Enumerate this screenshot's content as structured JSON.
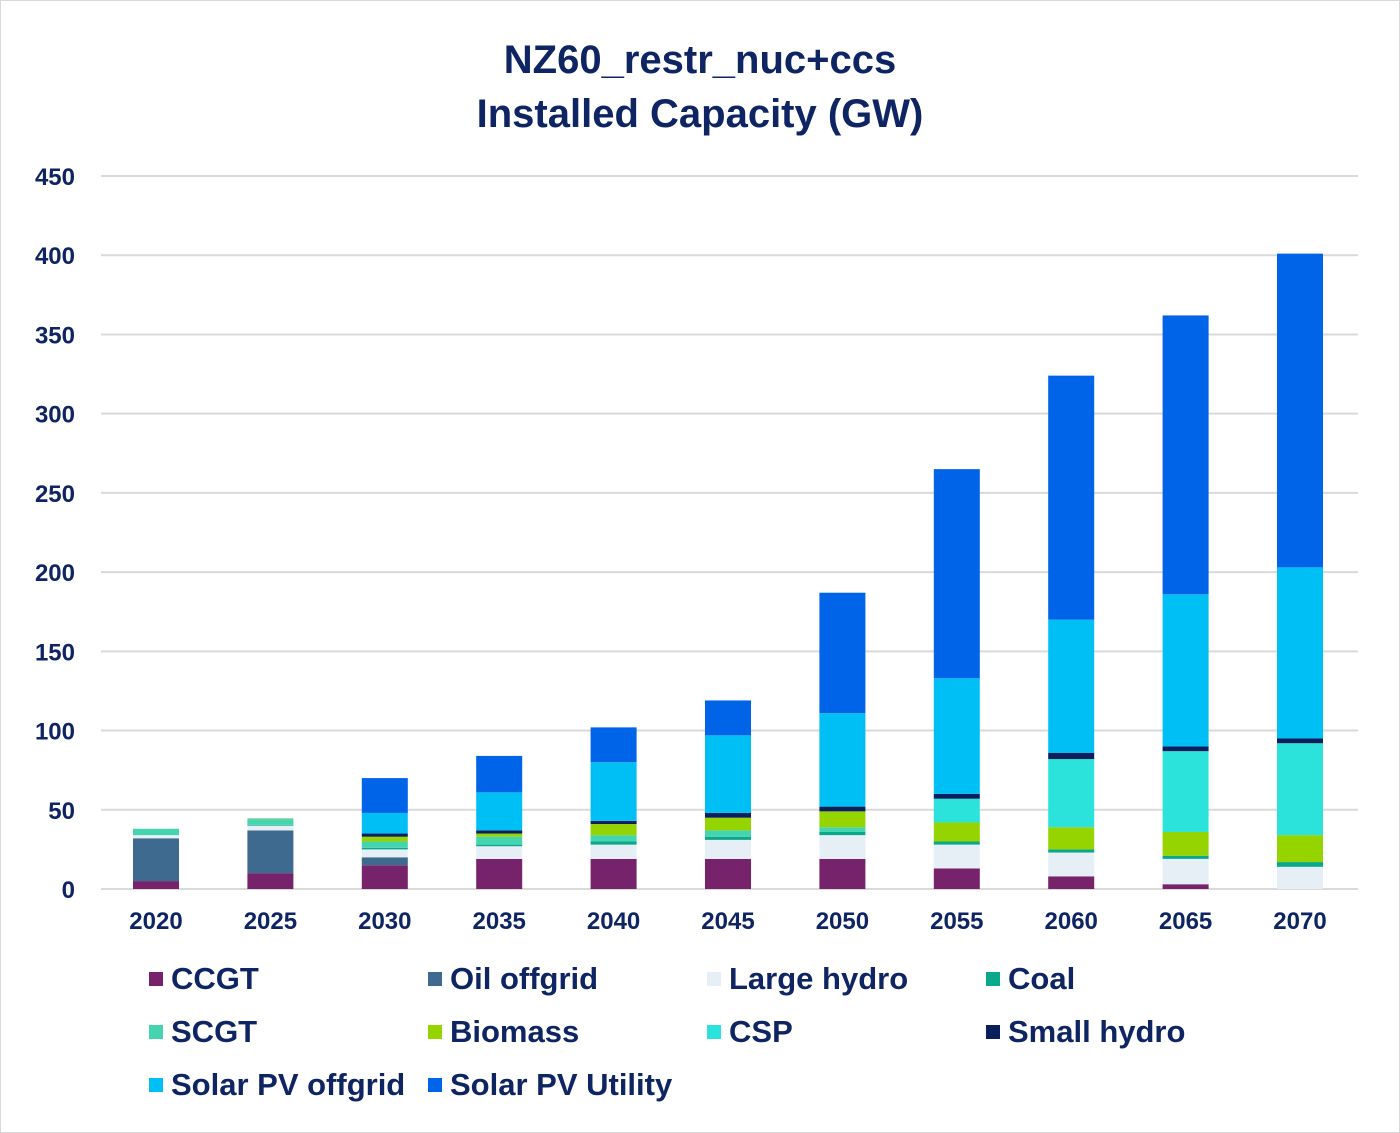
{
  "chart_data": {
    "type": "bar",
    "stacked": true,
    "title": "NZ60_restr_nuc+ccs",
    "subtitle": "Installed Capacity (GW)",
    "xlabel": "",
    "ylabel": "",
    "ylim": [
      0,
      450
    ],
    "yticks": [
      0,
      50,
      100,
      150,
      200,
      250,
      300,
      350,
      400,
      450
    ],
    "grid": true,
    "legend_position": "bottom",
    "categories": [
      "2020",
      "2025",
      "2030",
      "2035",
      "2040",
      "2045",
      "2050",
      "2055",
      "2060",
      "2065",
      "2070"
    ],
    "series": [
      {
        "name": "CCGT",
        "color": "#76236b",
        "values": [
          5,
          10,
          15,
          19,
          19,
          19,
          19,
          13,
          8,
          3,
          0
        ]
      },
      {
        "name": "Oil offgrid",
        "color": "#3e6a8f",
        "values": [
          27,
          27,
          5,
          0,
          0,
          0,
          0,
          0,
          0,
          0,
          0
        ]
      },
      {
        "name": "Large hydro",
        "color": "#e6eef6",
        "values": [
          2,
          3,
          5,
          8,
          9,
          12,
          15,
          15,
          15,
          16,
          14
        ]
      },
      {
        "name": "Coal",
        "color": "#0aa88a",
        "values": [
          0,
          0.5,
          1,
          1,
          2,
          2,
          2,
          2,
          2,
          2,
          3
        ]
      },
      {
        "name": "SCGT",
        "color": "#45d4b0",
        "values": [
          4,
          3,
          4,
          5,
          4,
          4,
          3,
          0,
          0,
          0,
          0
        ]
      },
      {
        "name": "Biomass",
        "color": "#96d400",
        "values": [
          0,
          0.5,
          3,
          2,
          7,
          8,
          10,
          12,
          14,
          15,
          17
        ]
      },
      {
        "name": "CSP",
        "color": "#2ce3dc",
        "values": [
          0,
          0,
          0,
          0,
          0,
          0,
          0,
          15,
          43,
          51,
          58
        ]
      },
      {
        "name": "Small hydro",
        "color": "#0a1f5c",
        "values": [
          0,
          0,
          2,
          2,
          2,
          3,
          3,
          3,
          4,
          3,
          3
        ]
      },
      {
        "name": "Solar PV offgrid",
        "color": "#00bff5",
        "values": [
          0,
          0.5,
          13,
          24,
          37,
          49,
          59,
          73,
          84,
          96,
          108
        ]
      },
      {
        "name": "Solar PV Utility",
        "color": "#0064e8",
        "values": [
          0,
          0,
          22,
          23,
          22,
          22,
          76,
          132,
          154,
          176,
          198
        ]
      }
    ]
  }
}
